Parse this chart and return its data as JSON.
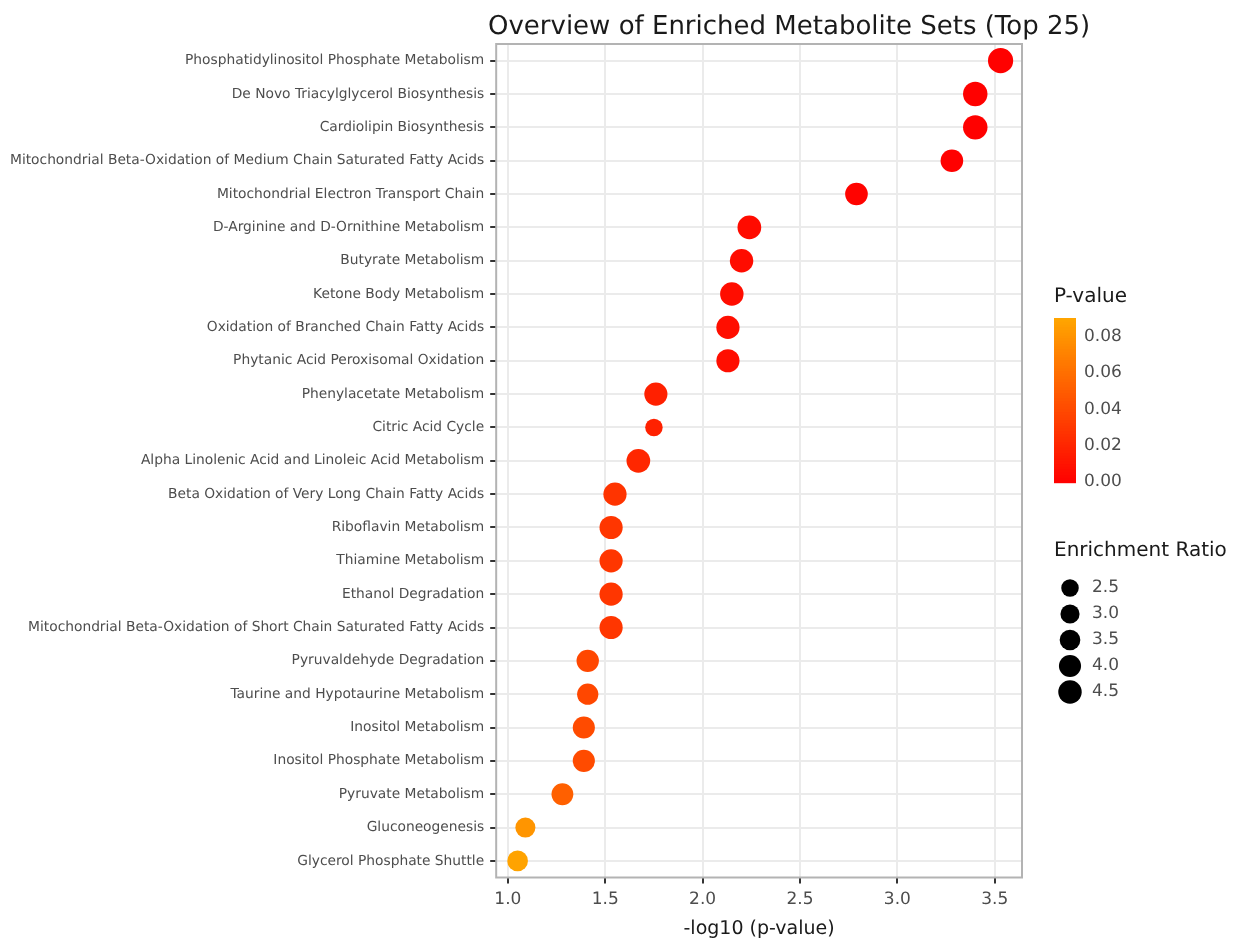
{
  "chart_data": {
    "type": "bubble",
    "orientation": "horizontal",
    "title": "Overview of Enriched Metabolite Sets (Top 25)",
    "xlabel": "-log10 (p-value)",
    "clabel": "P-value",
    "legend_title": "Enrichment Ratio",
    "categories": [
      "Phosphatidylinositol Phosphate Metabolism",
      "De Novo Triacylglycerol Biosynthesis",
      "Cardiolipin Biosynthesis",
      "Mitochondrial Beta-Oxidation of Medium Chain Saturated Fatty Acids",
      "Mitochondrial Electron Transport Chain",
      "D-Arginine and D-Ornithine Metabolism",
      "Butyrate Metabolism",
      "Ketone Body Metabolism",
      "Oxidation of Branched Chain Fatty Acids",
      "Phytanic Acid Peroxisomal Oxidation",
      "Phenylacetate Metabolism",
      "Citric Acid Cycle",
      "Alpha Linolenic Acid and Linoleic Acid Metabolism",
      "Beta Oxidation of Very Long Chain Fatty Acids",
      "Riboflavin Metabolism",
      "Thiamine Metabolism",
      "Ethanol Degradation",
      "Mitochondrial Beta-Oxidation of Short Chain Saturated Fatty Acids",
      "Pyruvaldehyde Degradation",
      "Taurine and Hypotaurine Metabolism",
      "Inositol Metabolism",
      "Inositol Phosphate Metabolism",
      "Pyruvate Metabolism",
      "Gluconeogenesis",
      "Glycerol Phosphate Shuttle"
    ],
    "values": [
      3.53,
      3.4,
      3.4,
      3.28,
      2.79,
      2.24,
      2.2,
      2.15,
      2.13,
      2.13,
      1.76,
      1.75,
      1.67,
      1.55,
      1.53,
      1.53,
      1.53,
      1.53,
      1.41,
      1.41,
      1.39,
      1.39,
      1.28,
      1.09,
      1.05
    ],
    "sizes": [
      5.2,
      4.9,
      4.9,
      4.2,
      4.2,
      4.6,
      4.5,
      4.5,
      4.4,
      4.4,
      4.4,
      2.5,
      4.6,
      4.4,
      4.4,
      4.4,
      4.4,
      4.4,
      4.1,
      3.7,
      4.0,
      4.0,
      3.9,
      3.3,
      3.5
    ],
    "size_legend": [
      2.5,
      {
        "value": 3,
        "label": "3.0"
      },
      3.5,
      {
        "value": 4,
        "label": "4.0"
      },
      4.5
    ],
    "cvalues": [
      0.0003,
      0.0004,
      0.0004,
      0.0005,
      0.0016,
      0.0058,
      0.0063,
      0.0071,
      0.0074,
      0.0074,
      0.0174,
      0.0178,
      0.0214,
      0.0282,
      0.0295,
      0.0295,
      0.0295,
      0.0295,
      0.0389,
      0.0389,
      0.0407,
      0.0407,
      0.0525,
      0.0813,
      0.0891
    ],
    "clim": [
      0,
      0.09
    ],
    "cticks": [
      {
        "value": 0,
        "label": "0.00"
      },
      {
        "value": 0.02,
        "label": "0.02"
      },
      {
        "value": 0.04,
        "label": "0.04"
      },
      {
        "value": 0.06,
        "label": "0.06"
      },
      {
        "value": 0.08,
        "label": "0.08"
      }
    ],
    "xlim": [
      0.94,
      3.64
    ],
    "xticks": [
      {
        "value": 1,
        "label": "1.0"
      },
      1.5,
      {
        "value": 2,
        "label": "2.0"
      },
      2.5,
      {
        "value": 3,
        "label": "3.0"
      },
      3.5
    ],
    "grid": true,
    "marker": "circle"
  }
}
